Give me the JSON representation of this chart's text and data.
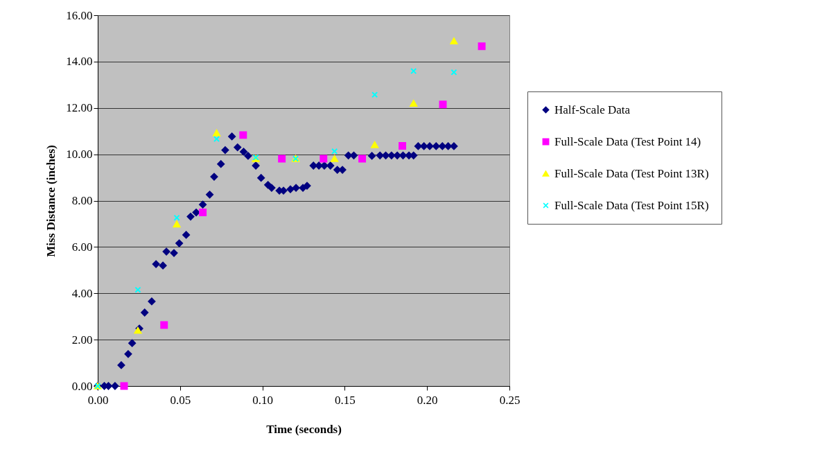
{
  "chart_data": {
    "type": "scatter",
    "xlabel": "Time (seconds)",
    "ylabel": "Miss Distance (inches)",
    "xlim": [
      0,
      0.25
    ],
    "ylim": [
      0,
      16
    ],
    "xticks": [
      {
        "value": 0,
        "label": "0.00"
      },
      {
        "value": 0.05,
        "label": "0.05"
      },
      {
        "value": 0.1,
        "label": "0.10"
      },
      {
        "value": 0.15,
        "label": "0.15"
      },
      {
        "value": 0.2,
        "label": "0.20"
      },
      {
        "value": 0.25,
        "label": "0.25"
      }
    ],
    "yticks": [
      {
        "value": 0,
        "label": "0.00"
      },
      {
        "value": 2,
        "label": "2.00"
      },
      {
        "value": 4,
        "label": "4.00"
      },
      {
        "value": 6,
        "label": "6.00"
      },
      {
        "value": 8,
        "label": "8.00"
      },
      {
        "value": 10,
        "label": "10.00"
      },
      {
        "value": 12,
        "label": "12.00"
      },
      {
        "value": 14,
        "label": "14.00"
      },
      {
        "value": 16,
        "label": "16.00"
      }
    ],
    "grid": "y",
    "legend": "right",
    "series": [
      {
        "name": "Half-Scale Data",
        "color": "#000080",
        "marker": "diamond",
        "x": [
          0,
          0.004,
          0.0065,
          0.0105,
          0.0143,
          0.0185,
          0.0209,
          0.0253,
          0.0285,
          0.0328,
          0.0354,
          0.0396,
          0.0417,
          0.0463,
          0.0495,
          0.0537,
          0.0564,
          0.0598,
          0.0638,
          0.068,
          0.0707,
          0.0748,
          0.0774,
          0.0815,
          0.0849,
          0.0886,
          0.0913,
          0.096,
          0.0992,
          0.1034,
          0.1056,
          0.1103,
          0.1128,
          0.117,
          0.1204,
          0.1246,
          0.1271,
          0.131,
          0.1343,
          0.1376,
          0.1413,
          0.1455,
          0.1486,
          0.1522,
          0.1555,
          0.1665,
          0.1714,
          0.1749,
          0.1784,
          0.1819,
          0.1854,
          0.189,
          0.1918,
          0.1946,
          0.1981,
          0.2016,
          0.2055,
          0.2093,
          0.2128,
          0.2163
        ],
        "values": [
          0,
          0,
          0,
          0,
          0.9,
          1.38,
          1.85,
          2.48,
          3.17,
          3.65,
          5.26,
          5.2,
          5.8,
          5.74,
          6.16,
          6.52,
          7.31,
          7.49,
          7.83,
          8.26,
          9.03,
          9.58,
          10.18,
          10.77,
          10.3,
          10.11,
          9.93,
          9.51,
          8.98,
          8.68,
          8.55,
          8.43,
          8.43,
          8.49,
          8.55,
          8.55,
          8.64,
          9.51,
          9.51,
          9.51,
          9.51,
          9.33,
          9.33,
          9.95,
          9.95,
          9.93,
          9.95,
          9.95,
          9.95,
          9.95,
          9.95,
          9.95,
          9.95,
          10.35,
          10.35,
          10.35,
          10.35,
          10.35,
          10.35,
          10.35
        ]
      },
      {
        "name": "Full-Scale Data (Test Point 14)",
        "color": "#ff00ff",
        "marker": "square",
        "x": [
          0.016,
          0.0403,
          0.0638,
          0.0883,
          0.1118,
          0.1371,
          0.1606,
          0.185,
          0.2096,
          0.2332
        ],
        "values": [
          0,
          2.63,
          7.49,
          10.83,
          9.81,
          9.81,
          9.81,
          10.36,
          12.15,
          14.66
        ]
      },
      {
        "name": "Full-Scale Data (Test Point 13R)",
        "color": "#ffff00",
        "marker": "triangle",
        "x": [
          0,
          0.0244,
          0.048,
          0.0722,
          0.096,
          0.1202,
          0.1438,
          0.1682,
          0.1918,
          0.2163
        ],
        "values": [
          0,
          2.4,
          6.99,
          10.92,
          9.81,
          9.81,
          9.81,
          10.41,
          12.2,
          14.89
        ]
      },
      {
        "name": "Full-Scale Data (Test Point 15R)",
        "color": "#00ffff",
        "marker": "cross",
        "x": [
          0,
          0.0244,
          0.048,
          0.0722,
          0.096,
          0.1202,
          0.1438,
          0.1682,
          0.1918,
          0.2163
        ],
        "values": [
          0,
          4.15,
          7.26,
          10.66,
          9.86,
          9.81,
          10.13,
          12.57,
          13.59,
          13.54
        ]
      }
    ]
  }
}
